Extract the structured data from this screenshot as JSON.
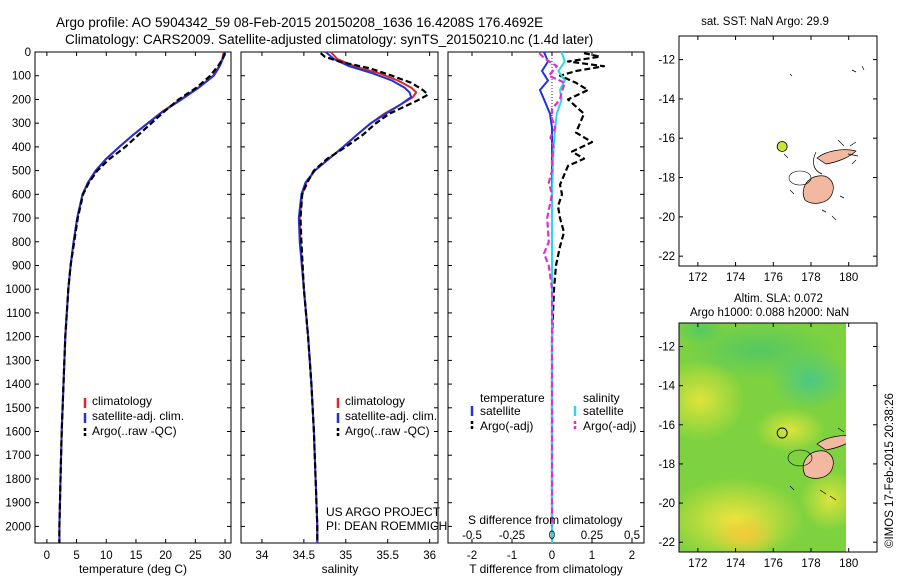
{
  "header": {
    "line1": "Argo profile: AO 5904342_59 08-Feb-2015 20150208_1636 16.4208S 176.4692E",
    "line2": "Climatology: CARS2009. Satellite-adjusted climatology: synTS_20150210.nc (1.4d later)"
  },
  "credit": "©IMOS 17-Feb-2015 20:38:26",
  "colors": {
    "clim": "#e4222a",
    "sat": "#1f33d6",
    "argo": "#000000",
    "sal_sat": "#2ad7e8",
    "sal_argo": "#dd2fd8",
    "land": "#f2b9a0",
    "probe_dot": "#c6e63a"
  },
  "chart_data": [
    {
      "id": "temperature",
      "type": "line",
      "xlabel": "temperature (deg C)",
      "ylabel": "",
      "xlim": [
        -2,
        31
      ],
      "ylim": [
        2070,
        0
      ],
      "xticks": [
        0,
        5,
        10,
        15,
        20,
        25,
        30
      ],
      "xtick_labels": [
        "0",
        "5",
        "10",
        "15",
        "20",
        "25",
        "30"
      ],
      "yticks": [
        0,
        100,
        200,
        300,
        400,
        500,
        600,
        700,
        800,
        900,
        1000,
        1100,
        1200,
        1300,
        1400,
        1500,
        1600,
        1700,
        1800,
        1900,
        2000
      ],
      "legend": [
        "climatology",
        "satellite-adj. clim.",
        "Argo(..raw -QC)"
      ],
      "legend_position": "lower-left",
      "series": [
        {
          "name": "climatology",
          "style": "solid",
          "y": [
            0,
            30,
            60,
            100,
            150,
            200,
            250,
            300,
            350,
            400,
            450,
            500,
            550,
            600,
            700,
            800,
            900,
            1000,
            1200,
            1400,
            1600,
            1800,
            2000,
            2070
          ],
          "x": [
            29.8,
            29.5,
            29.0,
            28.0,
            25.5,
            22.5,
            19.5,
            17.0,
            14.5,
            12.2,
            10.0,
            8.3,
            7.0,
            6.0,
            5.1,
            4.5,
            4.0,
            3.6,
            3.1,
            2.8,
            2.5,
            2.3,
            2.1,
            2.1
          ]
        },
        {
          "name": "satellite-adj. clim.",
          "style": "solid",
          "y": [
            0,
            30,
            60,
            100,
            150,
            200,
            250,
            300,
            350,
            400,
            450,
            500,
            550,
            600,
            700,
            800,
            900,
            1000,
            1200,
            1400,
            1600,
            1800,
            2000,
            2070
          ],
          "x": [
            29.9,
            29.6,
            29.1,
            28.1,
            25.6,
            22.7,
            19.6,
            17.0,
            14.5,
            12.2,
            10.0,
            8.2,
            6.9,
            6.0,
            5.1,
            4.5,
            4.0,
            3.6,
            3.1,
            2.8,
            2.5,
            2.3,
            2.1,
            2.1
          ]
        },
        {
          "name": "Argo(..raw -QC)",
          "style": "dashed",
          "y": [
            5,
            30,
            60,
            100,
            150,
            200,
            250,
            300,
            350,
            400,
            450,
            500,
            550,
            600,
            700,
            800,
            900,
            1000,
            1200,
            1400,
            1600,
            1800,
            2000,
            2070
          ],
          "x": [
            30.0,
            29.6,
            28.8,
            27.5,
            25.2,
            22.2,
            19.8,
            17.6,
            15.4,
            13.2,
            10.6,
            8.5,
            7.1,
            6.1,
            5.2,
            4.6,
            4.0,
            3.6,
            3.1,
            2.8,
            2.5,
            2.3,
            2.1,
            2.1
          ]
        }
      ]
    },
    {
      "id": "salinity",
      "type": "line",
      "xlabel": "salinity",
      "xlim": [
        33.75,
        36.1
      ],
      "ylim": [
        2070,
        0
      ],
      "xticks": [
        34,
        34.5,
        35,
        35.5,
        36
      ],
      "xtick_labels": [
        "34",
        "34.5",
        "35",
        "35.5",
        "36"
      ],
      "legend": [
        "climatology",
        "satellite-adj. clim.",
        "Argo(..raw -QC)"
      ],
      "legend_position": "lower-left",
      "annotations": [
        "US ARGO PROJECT",
        "PI: DEAN ROEMMICH"
      ],
      "series": [
        {
          "name": "climatology",
          "style": "solid",
          "y": [
            0,
            30,
            60,
            90,
            120,
            150,
            170,
            190,
            220,
            260,
            300,
            350,
            400,
            450,
            500,
            550,
            600,
            700,
            800,
            1000,
            1200,
            1400,
            1600,
            1800,
            2000,
            2070
          ],
          "x": [
            34.82,
            34.9,
            35.1,
            35.4,
            35.62,
            35.78,
            35.84,
            35.8,
            35.66,
            35.46,
            35.3,
            35.13,
            34.97,
            34.8,
            34.63,
            34.53,
            34.48,
            34.45,
            34.46,
            34.5,
            34.55,
            34.59,
            34.62,
            34.64,
            34.66,
            34.66
          ]
        },
        {
          "name": "satellite-adj. clim.",
          "style": "solid",
          "y": [
            0,
            30,
            60,
            90,
            120,
            150,
            170,
            190,
            220,
            260,
            300,
            350,
            400,
            450,
            500,
            550,
            600,
            700,
            800,
            1000,
            1200,
            1400,
            1600,
            1800,
            2000,
            2070
          ],
          "x": [
            34.76,
            34.86,
            35.04,
            35.32,
            35.55,
            35.7,
            35.76,
            35.78,
            35.66,
            35.48,
            35.3,
            35.13,
            34.97,
            34.8,
            34.63,
            34.52,
            34.47,
            34.44,
            34.45,
            34.5,
            34.55,
            34.59,
            34.62,
            34.64,
            34.66,
            34.66
          ]
        },
        {
          "name": "Argo(..raw -QC)",
          "style": "dashed",
          "y": [
            5,
            20,
            40,
            70,
            100,
            130,
            160,
            180,
            200,
            230,
            260,
            300,
            350,
            400,
            450,
            500,
            550,
            600,
            700,
            800,
            1000,
            1200,
            1400,
            1600,
            1800,
            2000,
            2070
          ],
          "x": [
            34.7,
            34.75,
            34.92,
            35.3,
            35.55,
            35.78,
            35.92,
            35.98,
            35.88,
            35.7,
            35.52,
            35.36,
            35.2,
            35.0,
            34.78,
            34.62,
            34.54,
            34.48,
            34.46,
            34.47,
            34.5,
            34.55,
            34.59,
            34.62,
            34.64,
            34.66,
            34.66
          ]
        }
      ]
    },
    {
      "id": "difference",
      "type": "line",
      "xlabel": "T difference from climatology",
      "top_axis_label": "S difference from climatology",
      "xlim": [
        -2.6,
        2.3
      ],
      "ylim": [
        2070,
        0
      ],
      "xticks": [
        -2,
        -1,
        0,
        1,
        2
      ],
      "xtick_labels": [
        "-2",
        "-1",
        "0",
        "1",
        "2"
      ],
      "s_ticks": [
        -0.5,
        -0.25,
        0,
        0.25,
        0.5
      ],
      "s_tick_labels": [
        "-0.5",
        "-0.25",
        "0",
        "0.25",
        "0.5"
      ],
      "s_to_t_scale": 4,
      "legend_temperature": {
        "title": "temperature",
        "items": [
          "satellite",
          "Argo(-adj)"
        ]
      },
      "legend_salinity": {
        "title": "salinity",
        "items": [
          "satellite",
          "Argo(-adj)"
        ]
      },
      "series": [
        {
          "name": "temperature satellite",
          "units": "T",
          "style": "solid",
          "y": [
            0,
            40,
            80,
            120,
            160,
            200,
            260,
            320,
            400,
            500,
            600,
            800,
            1000,
            1400,
            1800,
            2070
          ],
          "x": [
            -0.2,
            -0.1,
            -0.25,
            -0.1,
            -0.3,
            -0.2,
            -0.05,
            0.0,
            0.0,
            0.0,
            0.0,
            0.0,
            0.0,
            0.0,
            0.0,
            0.0
          ]
        },
        {
          "name": "temperature Argo(-adj)",
          "units": "T",
          "style": "dashed",
          "y": [
            5,
            20,
            40,
            60,
            80,
            100,
            130,
            160,
            200,
            230,
            260,
            300,
            340,
            380,
            420,
            450,
            480,
            520,
            560,
            600,
            650,
            700,
            760,
            820,
            900,
            1000,
            1200,
            1400,
            1600,
            1800,
            2000
          ],
          "x": [
            0.8,
            1.2,
            0.4,
            1.3,
            0.6,
            0.2,
            0.6,
            0.9,
            0.4,
            0.6,
            0.8,
            0.7,
            0.6,
            1.0,
            0.5,
            0.8,
            0.4,
            0.3,
            0.2,
            0.25,
            0.15,
            0.2,
            0.3,
            0.2,
            0.1,
            0.05,
            0.0,
            0.0,
            0.0,
            0.0,
            0.0
          ]
        },
        {
          "name": "salinity satellite",
          "units": "S",
          "style": "solid",
          "y": [
            0,
            40,
            80,
            120,
            160,
            200,
            260,
            320,
            400,
            500,
            600,
            800,
            1000,
            1400,
            1800,
            2070
          ],
          "x": [
            0.06,
            0.08,
            0.04,
            0.08,
            0.05,
            0.06,
            0.03,
            0.02,
            0.01,
            0.005,
            0.0,
            0.0,
            0.0,
            0.0,
            0.0,
            0.0
          ]
        },
        {
          "name": "salinity Argo(-adj)",
          "units": "S",
          "style": "dashed",
          "y": [
            5,
            30,
            60,
            100,
            130,
            170,
            200,
            240,
            280,
            320,
            360,
            400,
            450,
            500,
            550,
            600,
            700,
            800,
            850,
            900,
            1000,
            1200,
            1400,
            1600,
            1800,
            2000
          ],
          "x": [
            -0.08,
            -0.04,
            0.03,
            -0.02,
            0.08,
            0.06,
            0.05,
            0.0,
            0.0,
            0.02,
            -0.01,
            0.01,
            0.0,
            0.0,
            -0.02,
            0.0,
            -0.03,
            -0.02,
            -0.05,
            -0.02,
            0.0,
            0.0,
            0.0,
            0.0,
            0.0,
            0.0
          ]
        }
      ]
    },
    {
      "id": "sst-map",
      "type": "scatter",
      "title": "sat. SST: NaN Argo: 29.9",
      "xlim": [
        171,
        181.5
      ],
      "ylim": [
        -22.5,
        -10.8
      ],
      "xticks": [
        172,
        174,
        176,
        178,
        180
      ],
      "xtick_labels": [
        "172",
        "174",
        "176",
        "178",
        "180"
      ],
      "yticks": [
        -12,
        -14,
        -16,
        -18,
        -20,
        -22
      ],
      "ytick_labels": [
        "-12",
        "-14",
        "-16",
        "-18",
        "-20",
        "-22"
      ],
      "float_position": {
        "lon": 176.47,
        "lat": -16.42
      }
    },
    {
      "id": "sla-map",
      "type": "heatmap",
      "title_line1": "Altim. SLA: 0.072",
      "title_line2": "Argo h1000: 0.088 h2000: NaN",
      "xlim": [
        171,
        181.5
      ],
      "ylim": [
        -22.5,
        -10.8
      ],
      "xticks": [
        172,
        174,
        176,
        178,
        180
      ],
      "xtick_labels": [
        "172",
        "174",
        "176",
        "178",
        "180"
      ],
      "yticks": [
        -12,
        -14,
        -16,
        -18,
        -20,
        -22
      ],
      "ytick_labels": [
        "-12",
        "-14",
        "-16",
        "-18",
        "-20",
        "-22"
      ],
      "float_position": {
        "lon": 176.47,
        "lat": -16.42
      }
    }
  ]
}
